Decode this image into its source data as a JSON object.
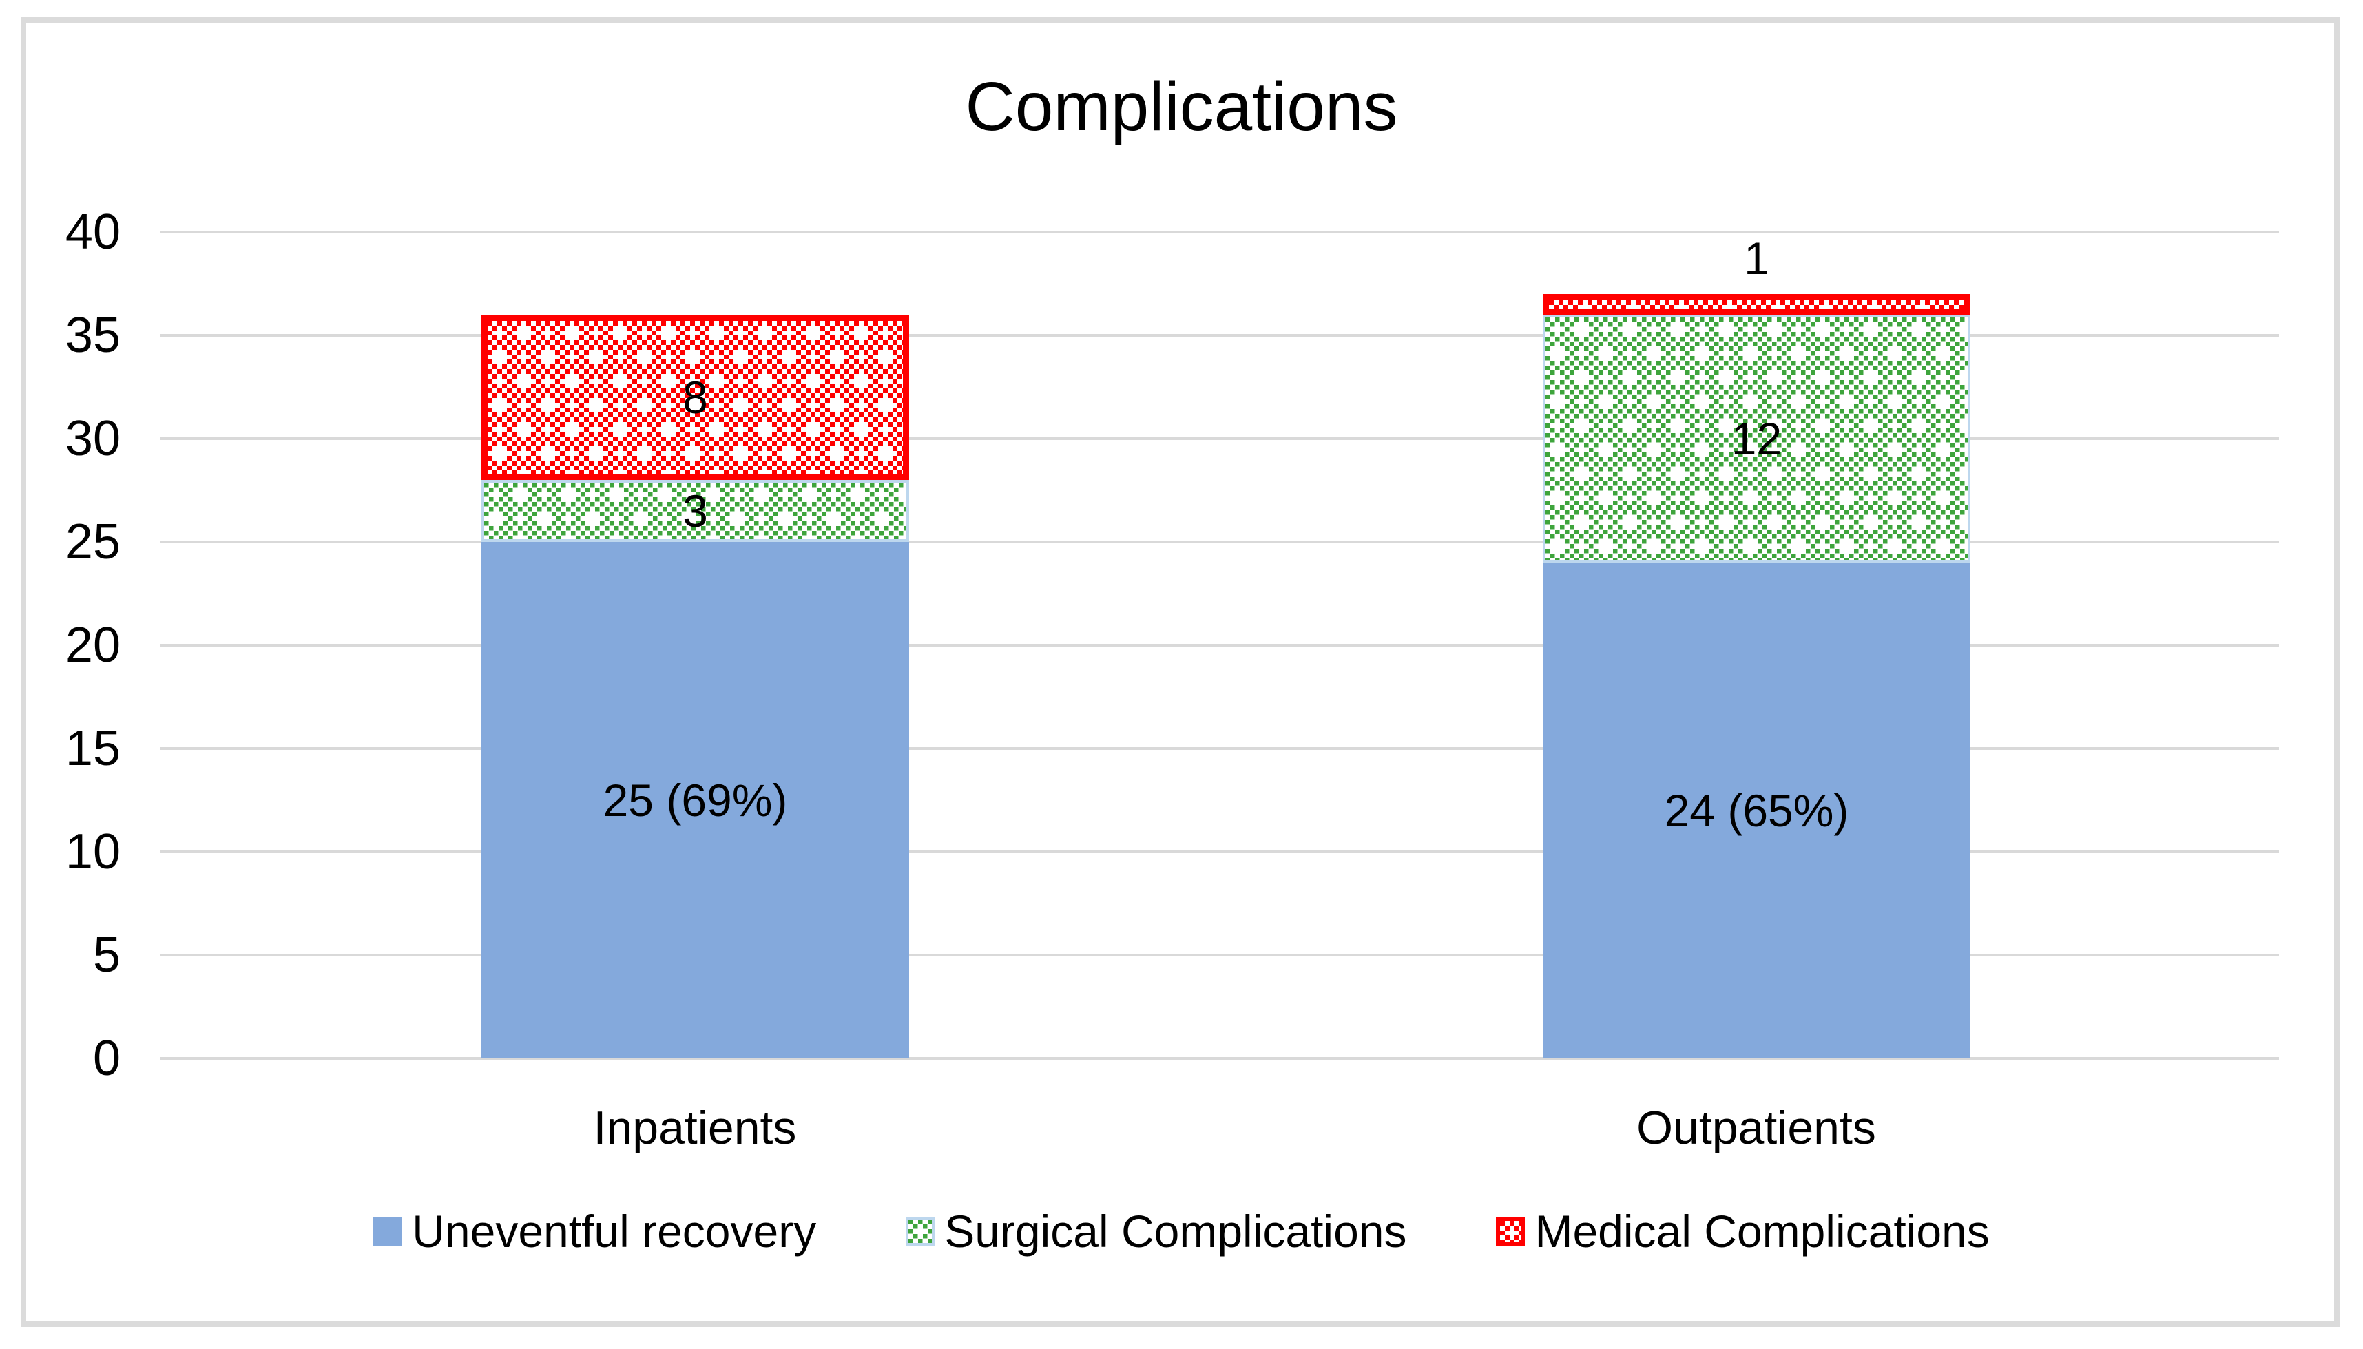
{
  "figure": {
    "background_color": "#FFFFFF",
    "border_color": "#DBDBDB"
  },
  "chart_data": {
    "type": "bar",
    "subtype": "stacked-vertical",
    "title": "Complications",
    "categories": [
      "Inpatients",
      "Outpatients"
    ],
    "series": [
      {
        "name": "Uneventful recovery",
        "style": "solid-blue",
        "color": "#84A9DC",
        "values": [
          25,
          24
        ],
        "data_labels": [
          "25 (69%)",
          "24 (65%)"
        ]
      },
      {
        "name": "Surgical Complications",
        "style": "green-checker",
        "color": "#3EA43C",
        "border_color": "#BDD7EE",
        "values": [
          3,
          12
        ],
        "data_labels": [
          "3",
          "12"
        ]
      },
      {
        "name": "Medical Complications",
        "style": "red-checker",
        "color": "#FF0000",
        "border_color": "#FF0000",
        "values": [
          8,
          1
        ],
        "data_labels": [
          "8",
          "1"
        ]
      }
    ],
    "ylim": [
      0,
      40
    ],
    "yticks": [
      0,
      5,
      10,
      15,
      20,
      25,
      30,
      35,
      40
    ],
    "grid": "horizontal",
    "gridline_color": "#D9D9D9",
    "legend_position": "bottom",
    "xlabel": "",
    "ylabel": ""
  }
}
